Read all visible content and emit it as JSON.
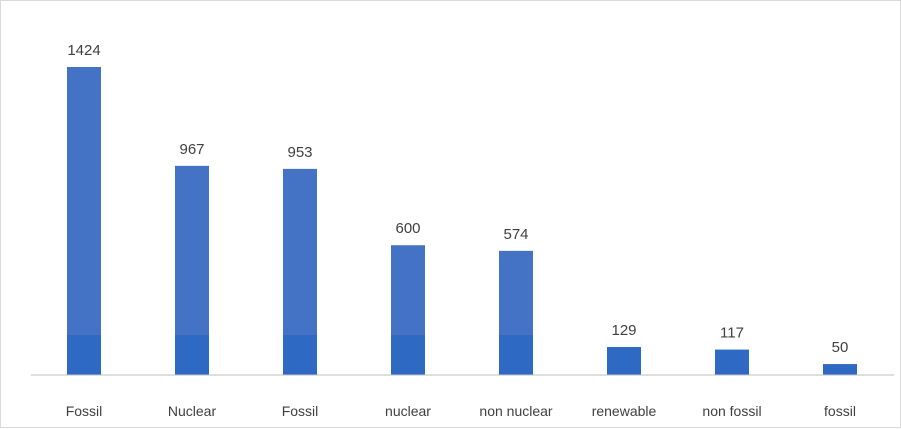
{
  "chart_data": {
    "type": "bar",
    "categories": [
      "Fossil",
      "Nuclear",
      "Fossil",
      "nuclear",
      "non nuclear",
      "renewable",
      "non fossil",
      "fossil"
    ],
    "values": [
      1424,
      967,
      953,
      600,
      574,
      129,
      117,
      50
    ],
    "data_labels": [
      "1424",
      "967",
      "953",
      "600",
      "574",
      "129",
      "117",
      "50"
    ],
    "title": "",
    "xlabel": "",
    "ylabel": "",
    "ylim": [
      0,
      1424
    ],
    "grid": false,
    "legend": "none",
    "colors": {
      "bar_upper": "#4472c4",
      "bar_lower": "#2e6ac4",
      "axis": "#bfbfbf",
      "text": "#404040"
    },
    "lower_band_value": 185
  }
}
